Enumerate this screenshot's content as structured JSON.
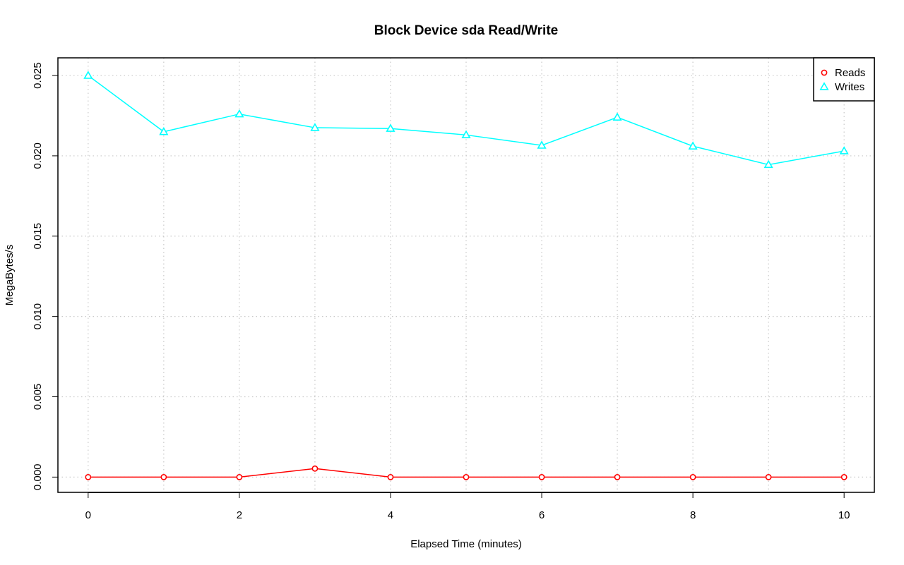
{
  "chart_data": {
    "type": "line",
    "title": "Block Device sda Read/Write",
    "xlabel": "Elapsed Time (minutes)",
    "ylabel": "MegaBytes/s",
    "xlim": [
      -0.4,
      10.4
    ],
    "ylim": [
      -0.00095,
      0.0261
    ],
    "x_ticks": [
      0,
      2,
      4,
      6,
      8,
      10
    ],
    "x_tick_labels": [
      "0",
      "2",
      "4",
      "6",
      "8",
      "10"
    ],
    "y_ticks": [
      0.0,
      0.005,
      0.01,
      0.015,
      0.02,
      0.025
    ],
    "y_tick_labels": [
      "0.000",
      "0.005",
      "0.010",
      "0.015",
      "0.020",
      "0.025"
    ],
    "grid": true,
    "legend_position": "top-right",
    "x": [
      0,
      1,
      2,
      3,
      4,
      5,
      6,
      7,
      8,
      9,
      10
    ],
    "series": [
      {
        "name": "Reads",
        "color": "#ff0000",
        "marker": "circle",
        "values": [
          0.0,
          0.0,
          0.0,
          0.00053,
          0.0,
          0.0,
          0.0,
          0.0,
          0.0,
          0.0,
          0.0
        ]
      },
      {
        "name": "Writes",
        "color": "#00ffff",
        "marker": "triangle",
        "values": [
          0.025,
          0.0215,
          0.0226,
          0.02175,
          0.0217,
          0.0213,
          0.02065,
          0.0224,
          0.0206,
          0.01945,
          0.0203
        ]
      }
    ]
  }
}
